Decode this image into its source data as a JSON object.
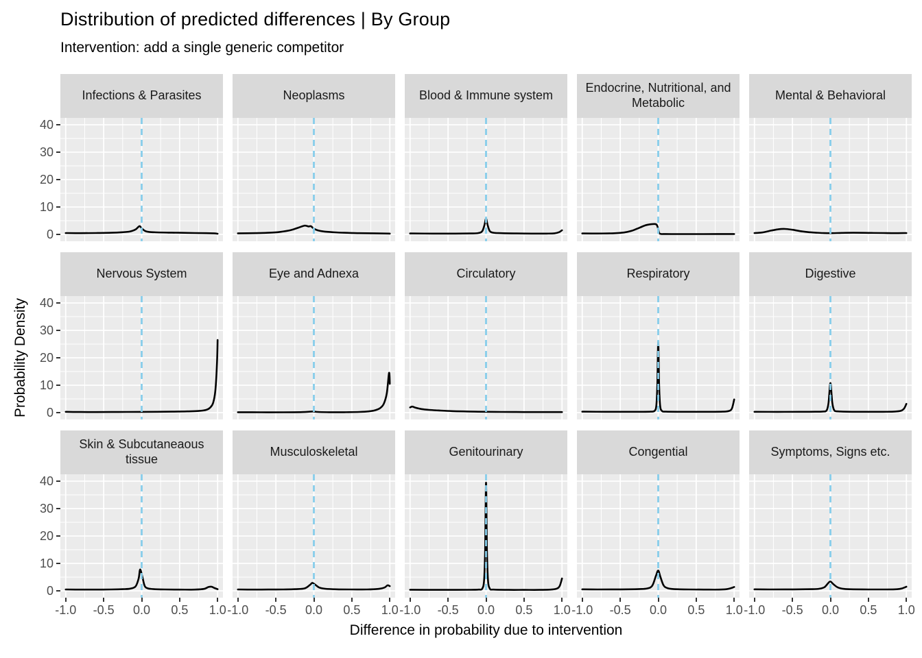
{
  "title": "Distribution of predicted differences | By Group",
  "subtitle": "Intervention: add a single generic competitor",
  "x_axis": {
    "title": "Difference in probability due to intervention",
    "tick_labels": [
      "-1.0",
      "-0.5",
      "0.0",
      "0.5",
      "1.0"
    ]
  },
  "y_axis": {
    "title": "Probability Density",
    "tick_labels": [
      "0",
      "10",
      "20",
      "30",
      "40"
    ]
  },
  "colors": {
    "panel_bg": "#EBEBEB",
    "strip_bg": "#D9D9D9",
    "grid": "#FFFFFF",
    "density_line": "#000000",
    "reference_line": "#87CEEB",
    "tick_text": "#4D4D4D",
    "strip_text": "#1A1A1A",
    "title_text": "#000000"
  },
  "chart_data": {
    "type": "line",
    "title": "Distribution of predicted differences | By Group",
    "subtitle": "Intervention: add a single generic competitor",
    "xlabel": "Difference in probability due to intervention",
    "ylabel": "Probability Density",
    "xlim": [
      -1,
      1
    ],
    "ylim": [
      0,
      40
    ],
    "x_ticks": [
      -1.0,
      -0.5,
      0.0,
      0.5,
      1.0
    ],
    "y_ticks": [
      0,
      10,
      20,
      30,
      40
    ],
    "grid": true,
    "legend": "none",
    "facet_layout": {
      "rows": 3,
      "cols": 5
    },
    "reference_line": {
      "axis": "x",
      "value": 0,
      "style": "dashed",
      "color": "#87CEEB"
    },
    "facets": [
      {
        "label": "Infections & Parasites",
        "points": [
          [
            -1,
            0.5
          ],
          [
            -0.8,
            0.45
          ],
          [
            -0.6,
            0.5
          ],
          [
            -0.4,
            0.6
          ],
          [
            -0.25,
            0.8
          ],
          [
            -0.15,
            1.1
          ],
          [
            -0.08,
            1.8
          ],
          [
            -0.03,
            3.0
          ],
          [
            0,
            2.2
          ],
          [
            0.05,
            1.2
          ],
          [
            0.1,
            0.9
          ],
          [
            0.2,
            0.75
          ],
          [
            0.35,
            0.65
          ],
          [
            0.5,
            0.6
          ],
          [
            0.7,
            0.5
          ],
          [
            0.85,
            0.45
          ],
          [
            0.95,
            0.4
          ],
          [
            1,
            0.25
          ]
        ]
      },
      {
        "label": "Neoplasms",
        "points": [
          [
            -1,
            0.4
          ],
          [
            -0.8,
            0.45
          ],
          [
            -0.6,
            0.6
          ],
          [
            -0.45,
            0.9
          ],
          [
            -0.3,
            1.6
          ],
          [
            -0.2,
            2.5
          ],
          [
            -0.12,
            3.2
          ],
          [
            -0.07,
            2.9
          ],
          [
            -0.04,
            3.0
          ],
          [
            0,
            2.1
          ],
          [
            0.05,
            1.5
          ],
          [
            0.12,
            1.1
          ],
          [
            0.25,
            0.8
          ],
          [
            0.4,
            0.6
          ],
          [
            0.6,
            0.45
          ],
          [
            0.8,
            0.4
          ],
          [
            1,
            0.3
          ]
        ]
      },
      {
        "label": "Blood & Immune system",
        "points": [
          [
            -1,
            0.35
          ],
          [
            -0.7,
            0.3
          ],
          [
            -0.4,
            0.3
          ],
          [
            -0.2,
            0.35
          ],
          [
            -0.1,
            0.5
          ],
          [
            -0.05,
            1.2
          ],
          [
            -0.02,
            3.5
          ],
          [
            0,
            5.8
          ],
          [
            0.02,
            3.5
          ],
          [
            0.05,
            1.2
          ],
          [
            0.1,
            0.6
          ],
          [
            0.2,
            0.45
          ],
          [
            0.4,
            0.35
          ],
          [
            0.6,
            0.3
          ],
          [
            0.8,
            0.3
          ],
          [
            0.9,
            0.4
          ],
          [
            0.96,
            0.8
          ],
          [
            1,
            1.5
          ]
        ]
      },
      {
        "label": "Endocrine, Nutritional, and Metabolic",
        "points": [
          [
            -1,
            0.35
          ],
          [
            -0.8,
            0.33
          ],
          [
            -0.6,
            0.4
          ],
          [
            -0.45,
            0.7
          ],
          [
            -0.35,
            1.3
          ],
          [
            -0.25,
            2.4
          ],
          [
            -0.17,
            3.3
          ],
          [
            -0.1,
            3.7
          ],
          [
            -0.05,
            3.8
          ],
          [
            -0.02,
            3.5
          ],
          [
            0,
            2.0
          ],
          [
            0.02,
            0.3
          ],
          [
            0.1,
            0.15
          ],
          [
            0.3,
            0.13
          ],
          [
            0.6,
            0.13
          ],
          [
            1,
            0.15
          ]
        ]
      },
      {
        "label": "Mental & Behavioral",
        "points": [
          [
            -1,
            0.5
          ],
          [
            -0.9,
            0.7
          ],
          [
            -0.78,
            1.4
          ],
          [
            -0.68,
            1.9
          ],
          [
            -0.6,
            2.0
          ],
          [
            -0.5,
            1.7
          ],
          [
            -0.4,
            1.2
          ],
          [
            -0.3,
            0.85
          ],
          [
            -0.2,
            0.65
          ],
          [
            -0.1,
            0.5
          ],
          [
            0,
            0.45
          ],
          [
            0.15,
            0.55
          ],
          [
            0.3,
            0.6
          ],
          [
            0.5,
            0.55
          ],
          [
            0.7,
            0.5
          ],
          [
            0.85,
            0.45
          ],
          [
            1,
            0.5
          ]
        ]
      },
      {
        "label": "Nervous System",
        "points": [
          [
            -1,
            0.3
          ],
          [
            -0.8,
            0.22
          ],
          [
            -0.6,
            0.2
          ],
          [
            -0.4,
            0.22
          ],
          [
            -0.2,
            0.25
          ],
          [
            0,
            0.28
          ],
          [
            0.2,
            0.3
          ],
          [
            0.4,
            0.35
          ],
          [
            0.6,
            0.45
          ],
          [
            0.75,
            0.6
          ],
          [
            0.85,
            1.0
          ],
          [
            0.9,
            1.8
          ],
          [
            0.94,
            3.5
          ],
          [
            0.97,
            8
          ],
          [
            0.99,
            17
          ],
          [
            1,
            26.5
          ]
        ]
      },
      {
        "label": "Eye and Adnexa",
        "points": [
          [
            -1,
            0.15
          ],
          [
            -0.7,
            0.12
          ],
          [
            -0.4,
            0.12
          ],
          [
            -0.15,
            0.2
          ],
          [
            -0.05,
            0.35
          ],
          [
            0,
            0.4
          ],
          [
            0.05,
            0.25
          ],
          [
            0.2,
            0.15
          ],
          [
            0.4,
            0.15
          ],
          [
            0.6,
            0.25
          ],
          [
            0.72,
            0.45
          ],
          [
            0.8,
            0.8
          ],
          [
            0.87,
            1.6
          ],
          [
            0.92,
            3.2
          ],
          [
            0.96,
            7
          ],
          [
            0.99,
            14.5
          ],
          [
            1,
            10.5
          ]
        ]
      },
      {
        "label": "Circulatory",
        "points": [
          [
            -1,
            1.9
          ],
          [
            -0.97,
            2.2
          ],
          [
            -0.93,
            1.8
          ],
          [
            -0.85,
            1.3
          ],
          [
            -0.75,
            1.0
          ],
          [
            -0.6,
            0.75
          ],
          [
            -0.45,
            0.55
          ],
          [
            -0.3,
            0.45
          ],
          [
            -0.15,
            0.35
          ],
          [
            0,
            0.3
          ],
          [
            0.2,
            0.25
          ],
          [
            0.4,
            0.22
          ],
          [
            0.6,
            0.2
          ],
          [
            0.8,
            0.2
          ],
          [
            1,
            0.2
          ]
        ]
      },
      {
        "label": "Respiratory",
        "points": [
          [
            -1,
            0.35
          ],
          [
            -0.7,
            0.3
          ],
          [
            -0.4,
            0.3
          ],
          [
            -0.2,
            0.3
          ],
          [
            -0.1,
            0.35
          ],
          [
            -0.05,
            0.6
          ],
          [
            -0.025,
            2.5
          ],
          [
            -0.012,
            10
          ],
          [
            0,
            26
          ],
          [
            0.012,
            10
          ],
          [
            0.025,
            2.5
          ],
          [
            0.05,
            0.6
          ],
          [
            0.1,
            0.35
          ],
          [
            0.3,
            0.3
          ],
          [
            0.5,
            0.3
          ],
          [
            0.7,
            0.3
          ],
          [
            0.85,
            0.35
          ],
          [
            0.93,
            0.6
          ],
          [
            0.97,
            1.5
          ],
          [
            1,
            4.8
          ]
        ]
      },
      {
        "label": "Digestive",
        "points": [
          [
            -1,
            0.3
          ],
          [
            -0.7,
            0.28
          ],
          [
            -0.4,
            0.3
          ],
          [
            -0.2,
            0.32
          ],
          [
            -0.1,
            0.4
          ],
          [
            -0.05,
            0.8
          ],
          [
            -0.025,
            3.5
          ],
          [
            0,
            10.8
          ],
          [
            0.025,
            3.5
          ],
          [
            0.05,
            0.9
          ],
          [
            0.1,
            0.45
          ],
          [
            0.3,
            0.3
          ],
          [
            0.5,
            0.3
          ],
          [
            0.7,
            0.3
          ],
          [
            0.85,
            0.4
          ],
          [
            0.93,
            0.7
          ],
          [
            0.97,
            1.5
          ],
          [
            1,
            3.2
          ]
        ]
      },
      {
        "label": "Skin & Subcutaneaous tissue",
        "points": [
          [
            -1,
            0.5
          ],
          [
            -0.8,
            0.45
          ],
          [
            -0.6,
            0.45
          ],
          [
            -0.4,
            0.5
          ],
          [
            -0.25,
            0.6
          ],
          [
            -0.15,
            0.8
          ],
          [
            -0.08,
            1.6
          ],
          [
            -0.04,
            4.5
          ],
          [
            -0.02,
            7.8
          ],
          [
            0.01,
            5.0
          ],
          [
            0.04,
            1.8
          ],
          [
            0.08,
            0.9
          ],
          [
            0.15,
            0.65
          ],
          [
            0.3,
            0.5
          ],
          [
            0.5,
            0.45
          ],
          [
            0.7,
            0.45
          ],
          [
            0.82,
            0.7
          ],
          [
            0.88,
            1.4
          ],
          [
            0.92,
            1.5
          ],
          [
            0.96,
            1.0
          ],
          [
            1,
            0.6
          ]
        ]
      },
      {
        "label": "Musculoskeletal",
        "points": [
          [
            -1,
            0.5
          ],
          [
            -0.8,
            0.45
          ],
          [
            -0.6,
            0.48
          ],
          [
            -0.4,
            0.5
          ],
          [
            -0.25,
            0.6
          ],
          [
            -0.12,
            0.9
          ],
          [
            -0.05,
            2.2
          ],
          [
            -0.02,
            2.9
          ],
          [
            0.02,
            2.2
          ],
          [
            0.07,
            1.2
          ],
          [
            0.15,
            0.75
          ],
          [
            0.3,
            0.55
          ],
          [
            0.5,
            0.5
          ],
          [
            0.7,
            0.5
          ],
          [
            0.85,
            0.7
          ],
          [
            0.93,
            1.2
          ],
          [
            0.97,
            2.0
          ],
          [
            1,
            1.7
          ]
        ]
      },
      {
        "label": "Genitourinary",
        "points": [
          [
            -1,
            0.4
          ],
          [
            -0.7,
            0.35
          ],
          [
            -0.4,
            0.35
          ],
          [
            -0.2,
            0.38
          ],
          [
            -0.1,
            0.45
          ],
          [
            -0.05,
            0.8
          ],
          [
            -0.025,
            4
          ],
          [
            -0.012,
            15
          ],
          [
            0,
            39.5
          ],
          [
            0.012,
            15
          ],
          [
            0.025,
            4
          ],
          [
            0.05,
            0.8
          ],
          [
            0.1,
            0.45
          ],
          [
            0.3,
            0.35
          ],
          [
            0.5,
            0.35
          ],
          [
            0.7,
            0.35
          ],
          [
            0.85,
            0.45
          ],
          [
            0.93,
            0.8
          ],
          [
            0.97,
            1.8
          ],
          [
            1,
            4.5
          ]
        ]
      },
      {
        "label": "Congential",
        "points": [
          [
            -1,
            0.55
          ],
          [
            -0.8,
            0.5
          ],
          [
            -0.6,
            0.52
          ],
          [
            -0.4,
            0.55
          ],
          [
            -0.25,
            0.65
          ],
          [
            -0.15,
            0.85
          ],
          [
            -0.08,
            1.8
          ],
          [
            -0.03,
            5.5
          ],
          [
            0,
            7.4
          ],
          [
            0.03,
            5.0
          ],
          [
            0.07,
            2.0
          ],
          [
            0.12,
            1.0
          ],
          [
            0.2,
            0.65
          ],
          [
            0.4,
            0.5
          ],
          [
            0.6,
            0.45
          ],
          [
            0.8,
            0.45
          ],
          [
            0.9,
            0.6
          ],
          [
            0.96,
            1.0
          ],
          [
            1,
            1.4
          ]
        ]
      },
      {
        "label": "Symptoms, Signs etc.",
        "points": [
          [
            -1,
            0.55
          ],
          [
            -0.8,
            0.5
          ],
          [
            -0.6,
            0.52
          ],
          [
            -0.4,
            0.55
          ],
          [
            -0.25,
            0.6
          ],
          [
            -0.15,
            0.75
          ],
          [
            -0.08,
            1.3
          ],
          [
            -0.03,
            2.8
          ],
          [
            0,
            3.4
          ],
          [
            0.04,
            2.4
          ],
          [
            0.1,
            1.2
          ],
          [
            0.18,
            0.7
          ],
          [
            0.3,
            0.55
          ],
          [
            0.5,
            0.5
          ],
          [
            0.7,
            0.5
          ],
          [
            0.85,
            0.55
          ],
          [
            0.93,
            0.8
          ],
          [
            1,
            1.5
          ]
        ]
      }
    ]
  }
}
